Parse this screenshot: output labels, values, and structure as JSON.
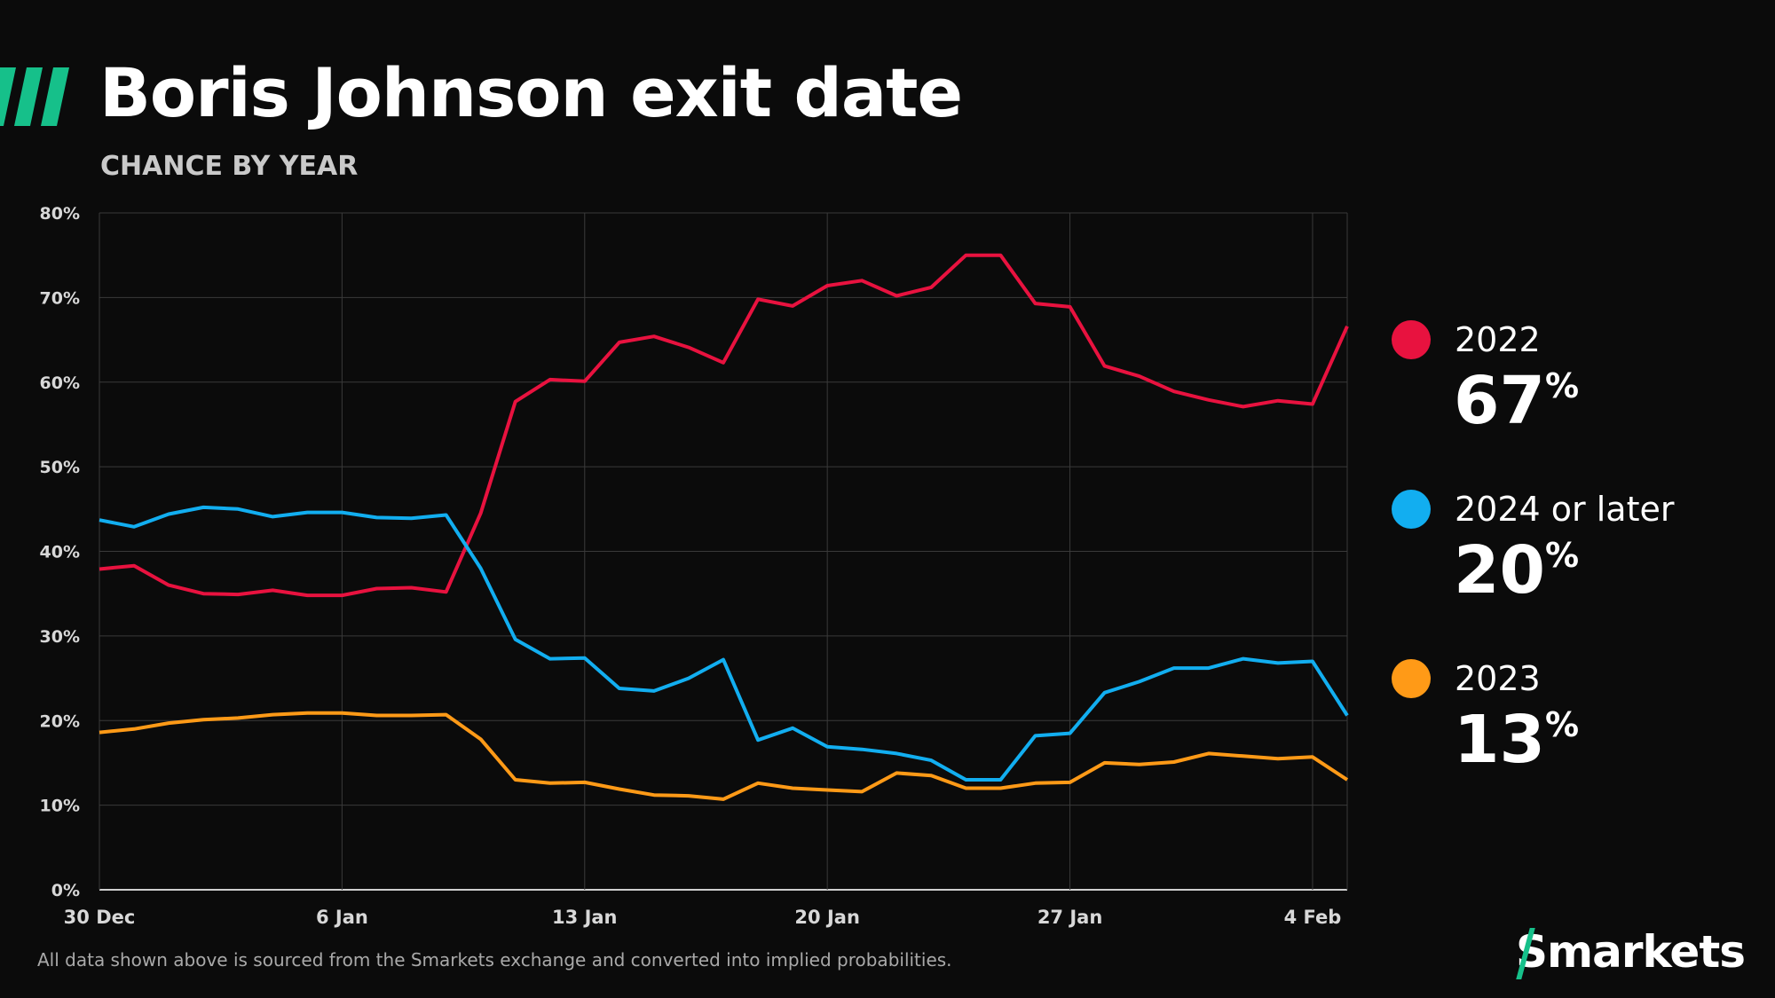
{
  "title": "Boris Johnson exit date",
  "subtitle": "CHANCE BY YEAR",
  "footnote": "All data shown above is sourced from the Smarkets exchange and converted into implied probabilities.",
  "logo_text": "Smarkets",
  "colors": {
    "background": "#0b0b0b",
    "accent": "#16c08a",
    "s2022": "#e8123f",
    "s2024": "#12aef0",
    "s2023": "#ff9a17",
    "grid": "#3a3a3a"
  },
  "legend": [
    {
      "label": "2022",
      "value": "67",
      "unit": "%",
      "color": "#e8123f"
    },
    {
      "label": "2024 or later",
      "value": "20",
      "unit": "%",
      "color": "#12aef0"
    },
    {
      "label": "2023",
      "value": "13",
      "unit": "%",
      "color": "#ff9a17"
    }
  ],
  "chart_data": {
    "type": "line",
    "title": "Boris Johnson exit date",
    "subtitle": "CHANCE BY YEAR",
    "xlabel": "",
    "ylabel": "",
    "x_start": "30 Dec",
    "x_days": 36,
    "xticks": [
      {
        "day": 0,
        "label": "30 Dec"
      },
      {
        "day": 7,
        "label": "6 Jan"
      },
      {
        "day": 14,
        "label": "13 Jan"
      },
      {
        "day": 21,
        "label": "20 Jan"
      },
      {
        "day": 28,
        "label": "27 Jan"
      },
      {
        "day": 35,
        "label": "4 Feb"
      }
    ],
    "yticks": [
      "0%",
      "10%",
      "20%",
      "30%",
      "40%",
      "50%",
      "60%",
      "70%",
      "80%"
    ],
    "ylim": [
      0,
      80
    ],
    "grid": true,
    "legend_position": "right",
    "series": [
      {
        "name": "2022",
        "color": "#e8123f",
        "values": [
          37.9,
          38.3,
          36,
          35,
          34.9,
          35.4,
          34.8,
          34.8,
          35.6,
          35.7,
          35.2,
          44.5,
          57.7,
          60.3,
          60.1,
          64.7,
          65.4,
          64.1,
          62.3,
          69.8,
          69,
          71.4,
          72,
          70.2,
          71.2,
          75,
          75,
          69.3,
          68.9,
          61.9,
          60.7,
          58.9,
          57.9,
          57.1,
          57.8,
          57.4,
          66.6
        ]
      },
      {
        "name": "2024 or later",
        "color": "#12aef0",
        "values": [
          43.7,
          42.9,
          44.4,
          45.2,
          45,
          44.1,
          44.6,
          44.6,
          44,
          43.9,
          44.3,
          38,
          29.6,
          27.3,
          27.4,
          23.8,
          23.5,
          25,
          27.2,
          17.7,
          19.1,
          16.9,
          16.6,
          16.1,
          15.3,
          13,
          13,
          18.2,
          18.5,
          23.3,
          24.6,
          26.2,
          26.2,
          27.3,
          26.8,
          27,
          20.6
        ]
      },
      {
        "name": "2023",
        "color": "#ff9a17",
        "values": [
          18.6,
          19,
          19.7,
          20.1,
          20.3,
          20.7,
          20.9,
          20.9,
          20.6,
          20.6,
          20.7,
          17.8,
          13,
          12.6,
          12.7,
          11.9,
          11.2,
          11.1,
          10.7,
          12.6,
          12,
          11.8,
          11.6,
          13.8,
          13.5,
          12,
          12,
          12.6,
          12.7,
          15,
          14.8,
          15.1,
          16.1,
          15.8,
          15.5,
          15.7,
          13
        ]
      }
    ]
  }
}
